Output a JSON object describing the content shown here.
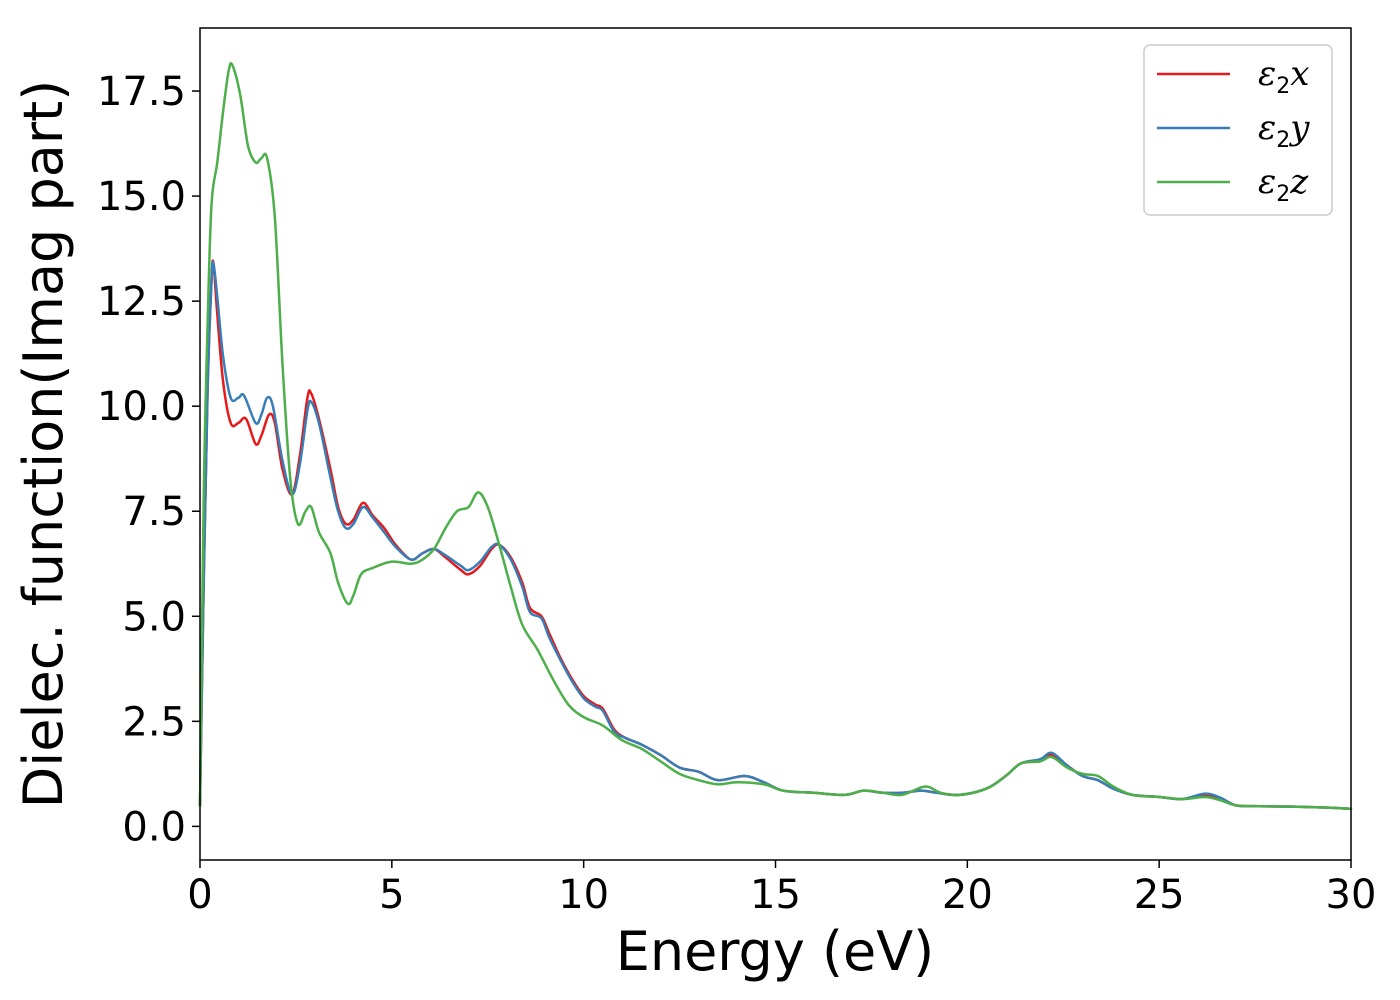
{
  "chart_data": {
    "type": "line",
    "xlabel": "Energy (eV)",
    "ylabel": "Dielec. function(Imag part)",
    "xlim": [
      0,
      30
    ],
    "ylim": [
      -0.8,
      19.0
    ],
    "xticks": [
      0,
      5,
      10,
      15,
      20,
      25,
      30
    ],
    "xtick_labels": [
      "0",
      "5",
      "10",
      "15",
      "20",
      "25",
      "30"
    ],
    "yticks": [
      0.0,
      2.5,
      5.0,
      7.5,
      10.0,
      12.5,
      15.0,
      17.5
    ],
    "ytick_labels": [
      "0.0",
      "2.5",
      "5.0",
      "7.5",
      "10.0",
      "12.5",
      "15.0",
      "17.5"
    ],
    "grid": false,
    "legend_position": "top-right",
    "series": [
      {
        "name": "ε2x",
        "legend_base": "ε",
        "legend_sub": "2",
        "legend_var": "x",
        "color": "#e41a1c",
        "points": [
          [
            0,
            0.5
          ],
          [
            0.1,
            6.0
          ],
          [
            0.2,
            10.5
          ],
          [
            0.3,
            13.0
          ],
          [
            0.35,
            13.4
          ],
          [
            0.45,
            12.2
          ],
          [
            0.6,
            10.6
          ],
          [
            0.8,
            9.6
          ],
          [
            1.0,
            9.6
          ],
          [
            1.2,
            9.7
          ],
          [
            1.45,
            9.1
          ],
          [
            1.6,
            9.3
          ],
          [
            1.8,
            9.8
          ],
          [
            1.95,
            9.6
          ],
          [
            2.15,
            8.5
          ],
          [
            2.4,
            7.9
          ],
          [
            2.6,
            8.8
          ],
          [
            2.8,
            10.2
          ],
          [
            2.9,
            10.3
          ],
          [
            3.1,
            9.7
          ],
          [
            3.4,
            8.5
          ],
          [
            3.6,
            7.6
          ],
          [
            3.8,
            7.2
          ],
          [
            4.0,
            7.3
          ],
          [
            4.25,
            7.7
          ],
          [
            4.5,
            7.4
          ],
          [
            4.8,
            7.1
          ],
          [
            5.1,
            6.7
          ],
          [
            5.5,
            6.35
          ],
          [
            5.8,
            6.5
          ],
          [
            6.1,
            6.6
          ],
          [
            6.4,
            6.4
          ],
          [
            6.8,
            6.1
          ],
          [
            7.0,
            6.0
          ],
          [
            7.3,
            6.2
          ],
          [
            7.6,
            6.6
          ],
          [
            7.8,
            6.7
          ],
          [
            8.1,
            6.4
          ],
          [
            8.4,
            5.8
          ],
          [
            8.6,
            5.2
          ],
          [
            8.9,
            5.0
          ],
          [
            9.1,
            4.6
          ],
          [
            9.4,
            4.0
          ],
          [
            9.7,
            3.5
          ],
          [
            10.0,
            3.1
          ],
          [
            10.3,
            2.9
          ],
          [
            10.5,
            2.8
          ],
          [
            10.8,
            2.3
          ],
          [
            11.1,
            2.1
          ],
          [
            11.5,
            1.95
          ],
          [
            12.0,
            1.7
          ],
          [
            12.5,
            1.4
          ],
          [
            13.0,
            1.3
          ],
          [
            13.5,
            1.1
          ],
          [
            14.2,
            1.2
          ],
          [
            14.7,
            1.05
          ],
          [
            15.2,
            0.85
          ],
          [
            16.0,
            0.8
          ],
          [
            16.8,
            0.75
          ],
          [
            17.3,
            0.85
          ],
          [
            17.8,
            0.8
          ],
          [
            18.3,
            0.8
          ],
          [
            18.8,
            0.85
          ],
          [
            19.2,
            0.8
          ],
          [
            19.8,
            0.75
          ],
          [
            20.5,
            0.9
          ],
          [
            21.0,
            1.2
          ],
          [
            21.4,
            1.5
          ],
          [
            21.9,
            1.55
          ],
          [
            22.2,
            1.7
          ],
          [
            22.6,
            1.45
          ],
          [
            23.0,
            1.2
          ],
          [
            23.4,
            1.1
          ],
          [
            23.8,
            0.9
          ],
          [
            24.3,
            0.75
          ],
          [
            25.0,
            0.7
          ],
          [
            25.6,
            0.65
          ],
          [
            26.2,
            0.75
          ],
          [
            26.6,
            0.65
          ],
          [
            27.0,
            0.5
          ],
          [
            27.6,
            0.48
          ],
          [
            28.5,
            0.47
          ],
          [
            29.3,
            0.45
          ],
          [
            30.0,
            0.42
          ]
        ]
      },
      {
        "name": "ε2y",
        "legend_base": "ε",
        "legend_sub": "2",
        "legend_var": "y",
        "color": "#377eb8",
        "points": [
          [
            0,
            0.5
          ],
          [
            0.1,
            6.0
          ],
          [
            0.2,
            10.5
          ],
          [
            0.3,
            13.0
          ],
          [
            0.35,
            13.4
          ],
          [
            0.45,
            12.6
          ],
          [
            0.6,
            11.2
          ],
          [
            0.8,
            10.2
          ],
          [
            1.0,
            10.2
          ],
          [
            1.15,
            10.25
          ],
          [
            1.45,
            9.6
          ],
          [
            1.6,
            9.8
          ],
          [
            1.75,
            10.2
          ],
          [
            1.9,
            10.0
          ],
          [
            2.15,
            8.7
          ],
          [
            2.4,
            7.9
          ],
          [
            2.6,
            8.6
          ],
          [
            2.8,
            9.9
          ],
          [
            2.9,
            10.1
          ],
          [
            3.1,
            9.6
          ],
          [
            3.4,
            8.3
          ],
          [
            3.6,
            7.5
          ],
          [
            3.8,
            7.1
          ],
          [
            4.0,
            7.2
          ],
          [
            4.25,
            7.6
          ],
          [
            4.5,
            7.35
          ],
          [
            4.8,
            7.0
          ],
          [
            5.1,
            6.65
          ],
          [
            5.5,
            6.35
          ],
          [
            5.8,
            6.5
          ],
          [
            6.1,
            6.6
          ],
          [
            6.4,
            6.45
          ],
          [
            6.8,
            6.2
          ],
          [
            7.0,
            6.1
          ],
          [
            7.3,
            6.3
          ],
          [
            7.6,
            6.65
          ],
          [
            7.8,
            6.7
          ],
          [
            8.1,
            6.35
          ],
          [
            8.4,
            5.7
          ],
          [
            8.6,
            5.1
          ],
          [
            8.9,
            4.95
          ],
          [
            9.1,
            4.5
          ],
          [
            9.4,
            3.95
          ],
          [
            9.7,
            3.45
          ],
          [
            10.0,
            3.05
          ],
          [
            10.3,
            2.85
          ],
          [
            10.5,
            2.75
          ],
          [
            10.8,
            2.25
          ],
          [
            11.1,
            2.1
          ],
          [
            11.5,
            1.95
          ],
          [
            12.0,
            1.7
          ],
          [
            12.5,
            1.4
          ],
          [
            13.0,
            1.3
          ],
          [
            13.5,
            1.1
          ],
          [
            14.2,
            1.2
          ],
          [
            14.7,
            1.05
          ],
          [
            15.2,
            0.85
          ],
          [
            16.0,
            0.8
          ],
          [
            16.8,
            0.75
          ],
          [
            17.3,
            0.85
          ],
          [
            17.8,
            0.8
          ],
          [
            18.3,
            0.8
          ],
          [
            18.8,
            0.85
          ],
          [
            19.2,
            0.8
          ],
          [
            19.8,
            0.75
          ],
          [
            20.5,
            0.9
          ],
          [
            21.0,
            1.2
          ],
          [
            21.4,
            1.5
          ],
          [
            21.9,
            1.6
          ],
          [
            22.2,
            1.75
          ],
          [
            22.6,
            1.45
          ],
          [
            23.0,
            1.2
          ],
          [
            23.4,
            1.1
          ],
          [
            23.8,
            0.9
          ],
          [
            24.3,
            0.75
          ],
          [
            25.0,
            0.7
          ],
          [
            25.6,
            0.65
          ],
          [
            26.2,
            0.78
          ],
          [
            26.6,
            0.68
          ],
          [
            27.0,
            0.5
          ],
          [
            27.6,
            0.48
          ],
          [
            28.5,
            0.47
          ],
          [
            29.3,
            0.45
          ],
          [
            30.0,
            0.42
          ]
        ]
      },
      {
        "name": "ε2z",
        "legend_base": "ε",
        "legend_sub": "2",
        "legend_var": "z",
        "color": "#4daf4a",
        "points": [
          [
            0,
            0.5
          ],
          [
            0.1,
            8.0
          ],
          [
            0.2,
            12.0
          ],
          [
            0.3,
            14.8
          ],
          [
            0.45,
            15.8
          ],
          [
            0.6,
            17.0
          ],
          [
            0.75,
            18.0
          ],
          [
            0.85,
            18.1
          ],
          [
            1.05,
            17.4
          ],
          [
            1.25,
            16.2
          ],
          [
            1.45,
            15.8
          ],
          [
            1.6,
            15.9
          ],
          [
            1.75,
            15.9
          ],
          [
            1.95,
            14.5
          ],
          [
            2.15,
            11.0
          ],
          [
            2.35,
            8.3
          ],
          [
            2.55,
            7.2
          ],
          [
            2.75,
            7.5
          ],
          [
            2.9,
            7.6
          ],
          [
            3.1,
            7.0
          ],
          [
            3.4,
            6.5
          ],
          [
            3.6,
            5.8
          ],
          [
            3.85,
            5.3
          ],
          [
            4.0,
            5.5
          ],
          [
            4.2,
            6.0
          ],
          [
            4.5,
            6.15
          ],
          [
            5.0,
            6.3
          ],
          [
            5.5,
            6.25
          ],
          [
            5.8,
            6.35
          ],
          [
            6.1,
            6.6
          ],
          [
            6.4,
            7.1
          ],
          [
            6.7,
            7.5
          ],
          [
            7.0,
            7.6
          ],
          [
            7.25,
            7.95
          ],
          [
            7.5,
            7.6
          ],
          [
            7.8,
            6.7
          ],
          [
            8.1,
            5.7
          ],
          [
            8.4,
            4.8
          ],
          [
            8.8,
            4.2
          ],
          [
            9.2,
            3.5
          ],
          [
            9.6,
            2.9
          ],
          [
            10.0,
            2.6
          ],
          [
            10.5,
            2.4
          ],
          [
            11.0,
            2.05
          ],
          [
            11.5,
            1.85
          ],
          [
            12.0,
            1.55
          ],
          [
            12.5,
            1.25
          ],
          [
            13.0,
            1.1
          ],
          [
            13.5,
            1.0
          ],
          [
            14.0,
            1.05
          ],
          [
            14.7,
            1.0
          ],
          [
            15.2,
            0.85
          ],
          [
            16.0,
            0.8
          ],
          [
            16.8,
            0.75
          ],
          [
            17.3,
            0.85
          ],
          [
            17.8,
            0.8
          ],
          [
            18.3,
            0.75
          ],
          [
            18.9,
            0.95
          ],
          [
            19.3,
            0.8
          ],
          [
            19.8,
            0.75
          ],
          [
            20.5,
            0.9
          ],
          [
            21.0,
            1.2
          ],
          [
            21.4,
            1.5
          ],
          [
            21.9,
            1.55
          ],
          [
            22.2,
            1.65
          ],
          [
            22.6,
            1.4
          ],
          [
            23.0,
            1.25
          ],
          [
            23.4,
            1.2
          ],
          [
            23.8,
            0.95
          ],
          [
            24.3,
            0.75
          ],
          [
            25.0,
            0.7
          ],
          [
            25.6,
            0.65
          ],
          [
            26.2,
            0.7
          ],
          [
            26.6,
            0.62
          ],
          [
            27.0,
            0.5
          ],
          [
            27.6,
            0.48
          ],
          [
            28.5,
            0.47
          ],
          [
            29.3,
            0.45
          ],
          [
            30.0,
            0.42
          ]
        ]
      }
    ]
  }
}
